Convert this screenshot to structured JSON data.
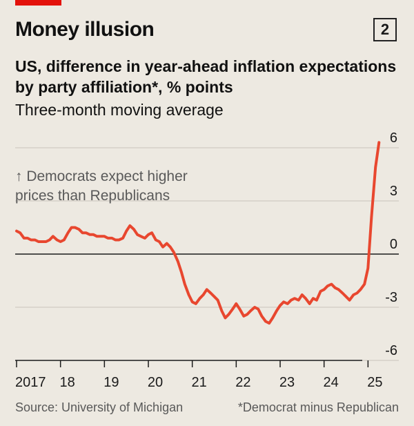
{
  "header": {
    "title": "Money illusion",
    "badge": "2",
    "subtitle": "US, difference in year-ahead inflation expectations by party affiliation*, % points",
    "subtitle2": "Three-month moving average"
  },
  "footer": {
    "source": "Source: University of Michigan",
    "note": "*Democrat minus Republican"
  },
  "colors": {
    "line": "#e8472f",
    "background": "#ede9e1",
    "grid": "#c9c4bc",
    "zero_line": "#1a1a1a"
  },
  "chart_data": {
    "type": "line",
    "annotation": "↑ Democrats expect higher prices than Republicans",
    "y_ticks": [
      6,
      3,
      0,
      -3,
      -6
    ],
    "y_tick_labels": [
      "6",
      "3",
      "0",
      "-3",
      "-6"
    ],
    "x_ticks": [
      2017,
      2018,
      2019,
      2020,
      2021,
      2022,
      2023,
      2024,
      2025
    ],
    "x_tick_labels": [
      "2017",
      "18",
      "19",
      "20",
      "21",
      "22",
      "23",
      "24",
      "25"
    ],
    "xlim": [
      2017,
      2025.67
    ],
    "ylim": [
      -6,
      6
    ],
    "grid": true,
    "series": [
      {
        "x": [
          2017.0,
          2017.08,
          2017.17,
          2017.25,
          2017.33,
          2017.42,
          2017.5,
          2017.58,
          2017.67,
          2017.75,
          2017.83,
          2017.92,
          2018.0,
          2018.08,
          2018.17,
          2018.25,
          2018.33,
          2018.42,
          2018.5,
          2018.58,
          2018.67,
          2018.75,
          2018.83,
          2018.92,
          2019.0,
          2019.08,
          2019.17,
          2019.25,
          2019.33,
          2019.42,
          2019.5,
          2019.58,
          2019.67,
          2019.75,
          2019.83,
          2019.92,
          2020.0,
          2020.08,
          2020.17,
          2020.25,
          2020.33,
          2020.42,
          2020.5,
          2020.58,
          2020.67,
          2020.75,
          2020.83,
          2020.92,
          2021.0,
          2021.08,
          2021.17,
          2021.25,
          2021.33,
          2021.42,
          2021.5,
          2021.58,
          2021.67,
          2021.75,
          2021.83,
          2021.92,
          2022.0,
          2022.08,
          2022.17,
          2022.25,
          2022.33,
          2022.42,
          2022.5,
          2022.58,
          2022.67,
          2022.75,
          2022.83,
          2022.92,
          2023.0,
          2023.08,
          2023.17,
          2023.25,
          2023.33,
          2023.42,
          2023.5,
          2023.58,
          2023.67,
          2023.75,
          2023.83,
          2023.92,
          2024.0,
          2024.08,
          2024.17,
          2024.25,
          2024.33,
          2024.42,
          2024.5,
          2024.58,
          2024.67,
          2024.75,
          2024.83,
          2024.92,
          2025.0,
          2025.08,
          2025.17,
          2025.25
        ],
        "y": [
          1.3,
          1.2,
          0.9,
          0.9,
          0.8,
          0.8,
          0.7,
          0.7,
          0.7,
          0.8,
          1.0,
          0.8,
          0.7,
          0.8,
          1.2,
          1.5,
          1.5,
          1.4,
          1.2,
          1.2,
          1.1,
          1.1,
          1.0,
          1.0,
          1.0,
          0.9,
          0.9,
          0.8,
          0.8,
          0.9,
          1.3,
          1.6,
          1.4,
          1.1,
          1.0,
          0.9,
          1.1,
          1.2,
          0.8,
          0.7,
          0.4,
          0.6,
          0.4,
          0.1,
          -0.4,
          -1.0,
          -1.7,
          -2.3,
          -2.7,
          -2.8,
          -2.5,
          -2.3,
          -2.0,
          -2.2,
          -2.4,
          -2.6,
          -3.2,
          -3.6,
          -3.4,
          -3.1,
          -2.8,
          -3.1,
          -3.5,
          -3.4,
          -3.2,
          -3.0,
          -3.1,
          -3.5,
          -3.8,
          -3.9,
          -3.6,
          -3.2,
          -2.9,
          -2.7,
          -2.8,
          -2.6,
          -2.5,
          -2.6,
          -2.3,
          -2.5,
          -2.8,
          -2.5,
          -2.6,
          -2.1,
          -2.0,
          -1.8,
          -1.7,
          -1.9,
          -2.0,
          -2.2,
          -2.4,
          -2.6,
          -2.3,
          -2.2,
          -2.0,
          -1.7,
          -0.8,
          2.1,
          4.9,
          6.3
        ]
      }
    ]
  }
}
